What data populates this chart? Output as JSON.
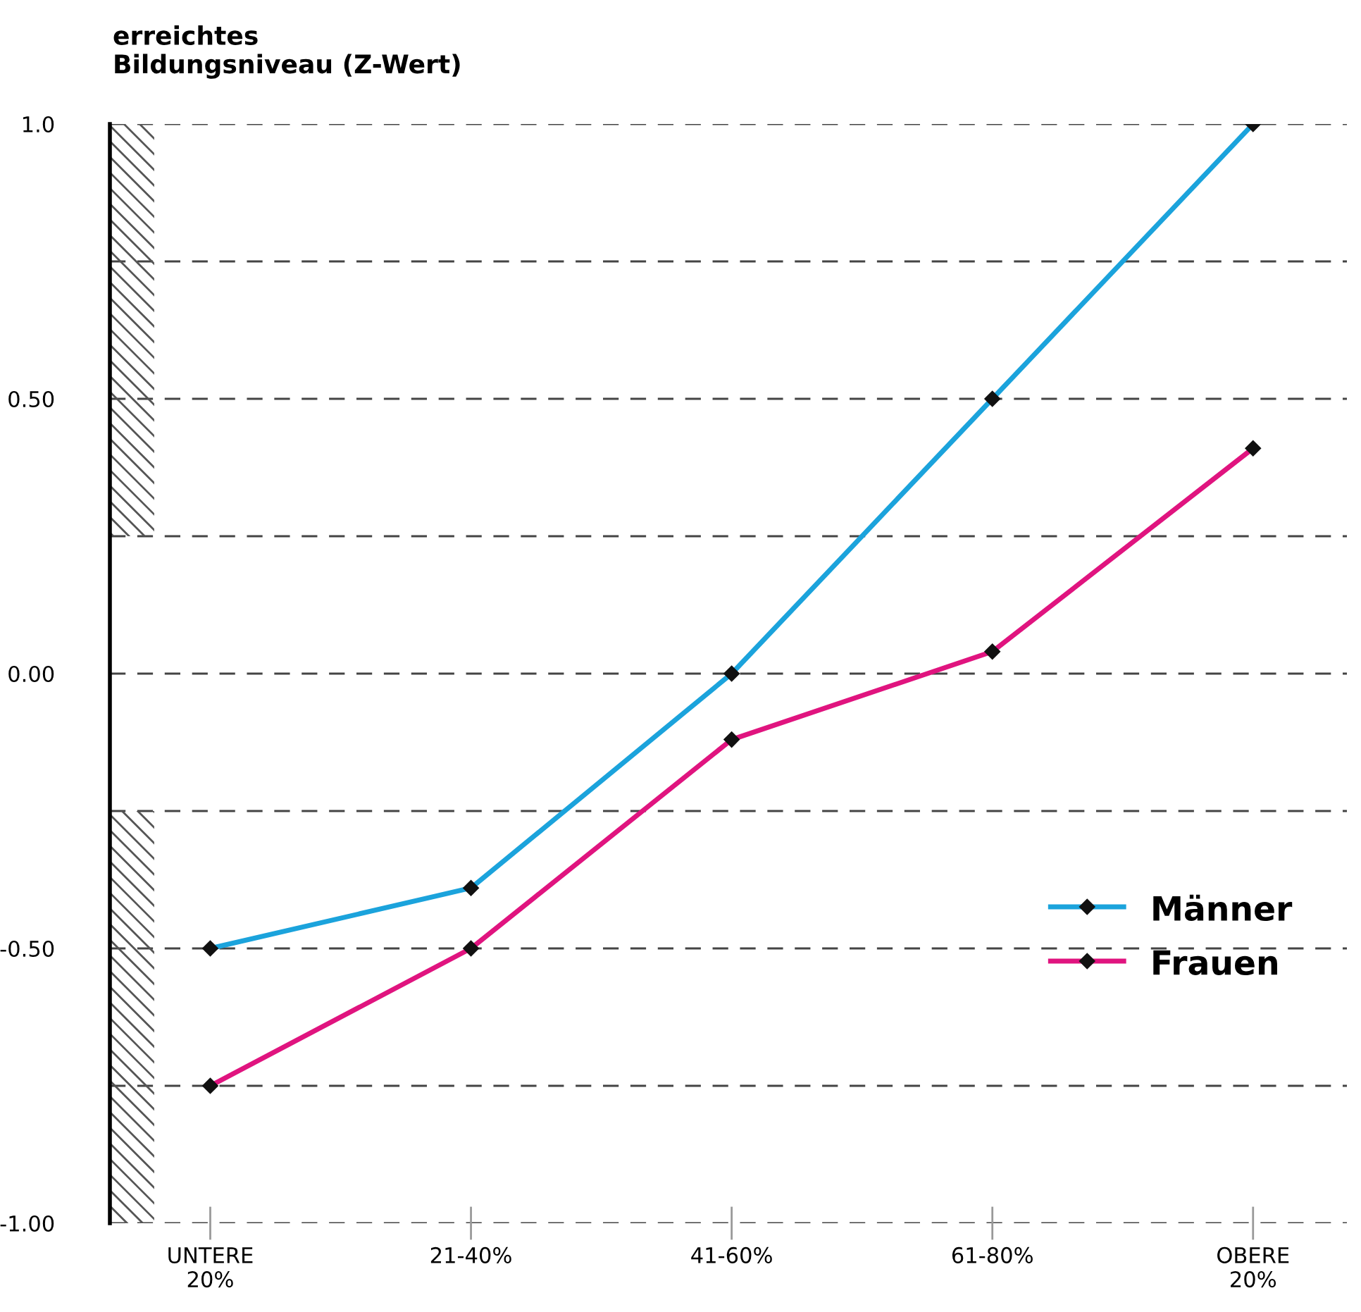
{
  "chart_data": {
    "type": "line",
    "ylabel": "erreichtes\nBildungsniveau (Z-Wert)",
    "categories": [
      "UNTERE\n20%",
      "21-40%",
      "41-60%",
      "61-80%",
      "OBERE\n20%"
    ],
    "series": [
      {
        "name": "Männer",
        "color": "#1ba3dc",
        "values": [
          -0.5,
          -0.39,
          0.0,
          0.5,
          1.0
        ]
      },
      {
        "name": "Frauen",
        "color": "#e0147f",
        "values": [
          -0.75,
          -0.5,
          -0.12,
          0.04,
          0.41
        ]
      }
    ],
    "ylim": [
      -1,
      1
    ],
    "yticks": [
      {
        "value": -1,
        "label": "-1.00"
      },
      {
        "value": -0.75,
        "label": null
      },
      {
        "value": -0.5,
        "label": "-0.50"
      },
      {
        "value": -0.25,
        "label": null
      },
      {
        "value": 0,
        "label": "0.00"
      },
      {
        "value": 0.25,
        "label": null
      },
      {
        "value": 0.5,
        "label": "0.50"
      },
      {
        "value": 0.75,
        "label": null
      },
      {
        "value": 1,
        "label": "1.0"
      }
    ],
    "grid": "y",
    "legend": "center right",
    "marker": "diamond",
    "line_style": "solid"
  }
}
